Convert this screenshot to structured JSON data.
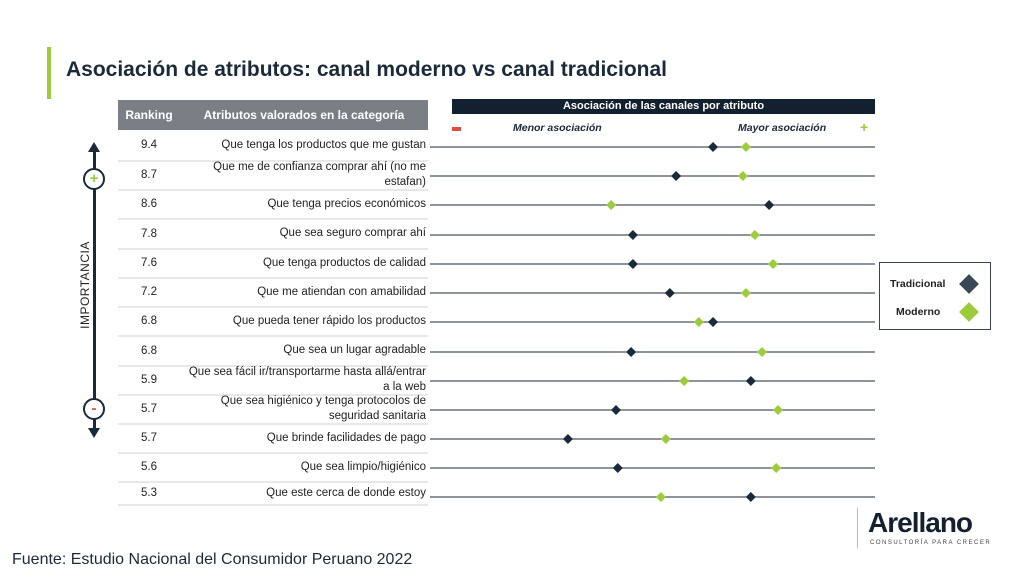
{
  "title": "Asociación de atributos: canal moderno vs canal tradicional",
  "table": {
    "headers": [
      "Ranking",
      "Atributos valorados en la categoría"
    ],
    "rows": [
      {
        "ranking": "9.4",
        "attribute": "Que tenga los productos que me gustan"
      },
      {
        "ranking": "8.7",
        "attribute": "Que me de confianza comprar ahí (no me estafan)"
      },
      {
        "ranking": "8.6",
        "attribute": "Que tenga precios económicos"
      },
      {
        "ranking": "7.8",
        "attribute": "Que sea seguro comprar ahí"
      },
      {
        "ranking": "7.6",
        "attribute": "Que tenga productos de calidad"
      },
      {
        "ranking": "7.2",
        "attribute": "Que me atiendan con amabilidad"
      },
      {
        "ranking": "6.8",
        "attribute": "Que pueda tener rápido los productos"
      },
      {
        "ranking": "6.8",
        "attribute": "Que sea un lugar agradable"
      },
      {
        "ranking": "5.9",
        "attribute": "Que sea fácil ir/transportarme hasta allá/entrar a la web"
      },
      {
        "ranking": "5.7",
        "attribute": "Que sea higiénico y tenga protocolos de seguridad sanitaria"
      },
      {
        "ranking": "5.7",
        "attribute": "Que brinde facilidades de pago"
      },
      {
        "ranking": "5.6",
        "attribute": "Que sea limpio/higiénico"
      },
      {
        "ranking": "5.3",
        "attribute": "Que este cerca de donde estoy"
      }
    ]
  },
  "importance_axis": {
    "label": "IMPORTANCIA",
    "top": "+",
    "bottom": "-"
  },
  "chart_data": {
    "type": "scatter",
    "title": "Asociación de las canales por atributo",
    "low_label": "Menor asociación",
    "high_label": "Mayor asociación",
    "xlim": [
      0,
      100
    ],
    "legend_position": "right",
    "series": [
      {
        "name": "Tradicional",
        "color": "#1b2a3a",
        "values": [
          63.6,
          55.3,
          76.2,
          45.6,
          45.6,
          53.9,
          63.6,
          45.2,
          72.1,
          41.8,
          31.0,
          42.2,
          72.1
        ]
      },
      {
        "name": "Moderno",
        "color": "#9ccc3c",
        "values": [
          71.0,
          70.3,
          40.7,
          73.0,
          77.1,
          71.0,
          60.4,
          74.6,
          57.1,
          78.2,
          53.0,
          77.8,
          51.9
        ]
      }
    ]
  },
  "logo": {
    "name": "Arellano",
    "tagline": "CONSULTORÍA PARA CRECER"
  },
  "source": "Fuente: Estudio Nacional del Consumidor Peruano 2022"
}
